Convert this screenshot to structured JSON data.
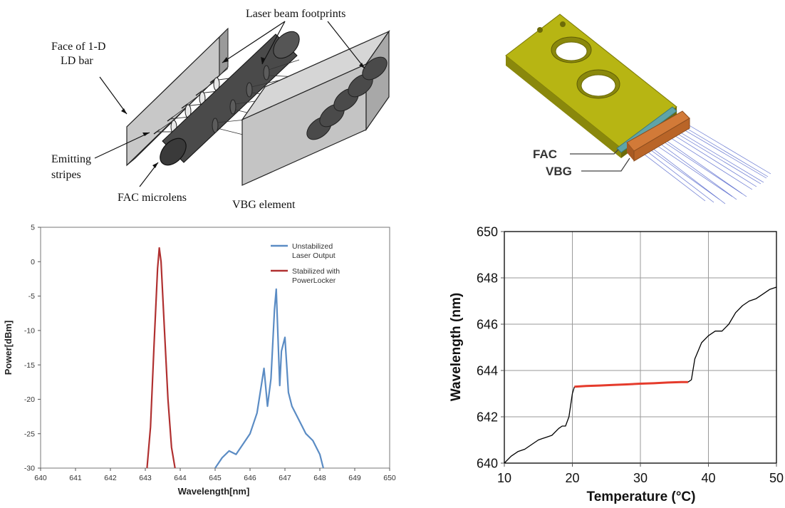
{
  "diagram_top_left": {
    "labels": {
      "face": [
        "Face of 1-D",
        "LD bar"
      ],
      "footprints": "Laser beam footprints",
      "emitting": [
        "Emitting",
        "stripes"
      ],
      "fac": "FAC microlens",
      "vbg": "VBG element"
    }
  },
  "diagram_top_right": {
    "labels": {
      "fac": "FAC",
      "vbg": "VBG"
    }
  },
  "chart_data": [
    {
      "type": "line",
      "xlabel": "Wavelength[nm]",
      "ylabel": "Power[dBm]",
      "xlim": [
        640,
        650
      ],
      "ylim": [
        -30,
        5
      ],
      "xticks": [
        640,
        641,
        642,
        643,
        644,
        645,
        646,
        647,
        648,
        649,
        650
      ],
      "yticks": [
        5,
        0,
        -5,
        -10,
        -15,
        -20,
        -25,
        -30
      ],
      "legend_position": "top-right",
      "series": [
        {
          "name": "Unstabilized Laser Output",
          "color": "#5b8cc4",
          "x": [
            645.0,
            645.2,
            645.4,
            645.6,
            645.8,
            646.0,
            646.2,
            646.4,
            646.5,
            646.6,
            646.7,
            646.75,
            646.85,
            646.9,
            647.0,
            647.1,
            647.2,
            647.4,
            647.6,
            647.8,
            648.0,
            648.1
          ],
          "y": [
            -30,
            -28.5,
            -27.5,
            -28,
            -26.5,
            -25,
            -22,
            -15.5,
            -21,
            -17,
            -7,
            -4,
            -18,
            -13,
            -11,
            -19,
            -21,
            -23,
            -25,
            -26,
            -28,
            -30
          ]
        },
        {
          "name": "Stabilized with PowerLocker",
          "color": "#b03030",
          "x": [
            643.05,
            643.15,
            643.25,
            643.35,
            643.4,
            643.45,
            643.55,
            643.65,
            643.75,
            643.85
          ],
          "y": [
            -30,
            -24,
            -12,
            -1,
            2,
            0,
            -10,
            -20,
            -27,
            -30
          ]
        }
      ]
    },
    {
      "type": "line",
      "xlabel": "Temperature (°C)",
      "ylabel": "Wavelength (nm)",
      "xlim": [
        10,
        50
      ],
      "ylim": [
        640,
        650
      ],
      "xticks": [
        10,
        20,
        30,
        40,
        50
      ],
      "yticks": [
        650,
        648,
        646,
        644,
        642,
        640
      ],
      "grid": true,
      "series": [
        {
          "color": "#000000",
          "x": [
            10,
            11,
            12,
            13,
            14,
            15,
            16,
            17,
            18,
            18.5,
            19,
            19.5,
            20,
            20.3
          ],
          "y": [
            640.0,
            640.3,
            640.5,
            640.6,
            640.8,
            641.0,
            641.1,
            641.2,
            641.5,
            641.6,
            641.6,
            642.0,
            643.0,
            643.3
          ]
        },
        {
          "color": "#e53b2c",
          "x": [
            20.3,
            22,
            24,
            26,
            28,
            30,
            32,
            34,
            36,
            37
          ],
          "y": [
            643.3,
            643.33,
            643.35,
            643.38,
            643.4,
            643.43,
            643.45,
            643.48,
            643.5,
            643.5
          ]
        },
        {
          "color": "#000000",
          "x": [
            37,
            37.5,
            38,
            39,
            40,
            41,
            42,
            43,
            44,
            45,
            46,
            47,
            48,
            49,
            50
          ],
          "y": [
            643.5,
            643.6,
            644.5,
            645.2,
            645.5,
            645.7,
            645.7,
            646.0,
            646.5,
            646.8,
            647.0,
            647.1,
            647.3,
            647.5,
            647.6
          ]
        }
      ]
    }
  ]
}
